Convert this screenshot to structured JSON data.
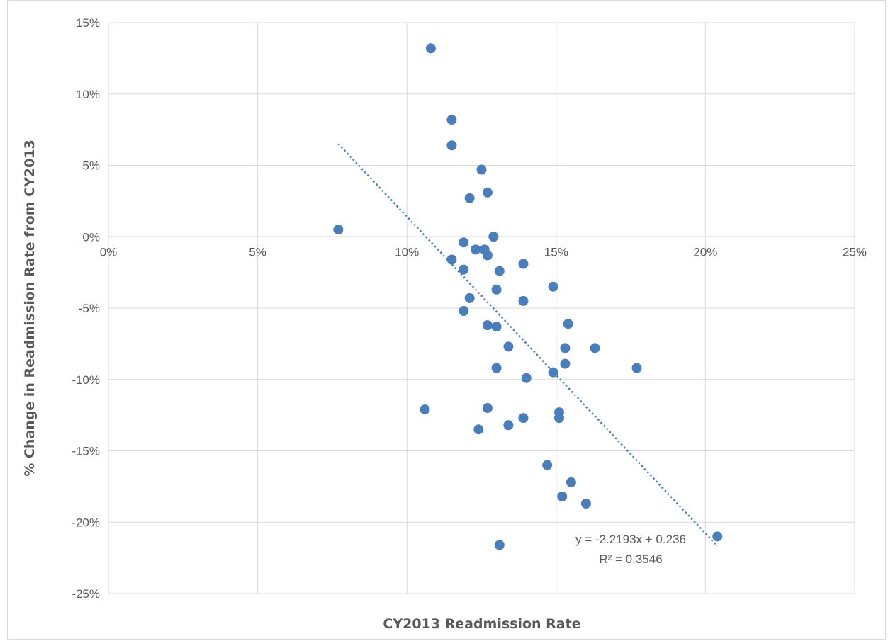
{
  "chart_data": {
    "type": "scatter",
    "title": "",
    "xlabel": "CY2013 Readmission Rate",
    "ylabel": "% Change in Readmission Rate from CY2013",
    "xlim": [
      0,
      0.25
    ],
    "ylim": [
      -0.25,
      0.15
    ],
    "x_ticks": [
      0,
      0.05,
      0.1,
      0.15,
      0.2,
      0.25
    ],
    "x_tick_labels": [
      "0%",
      "5%",
      "10%",
      "15%",
      "20%",
      "25%"
    ],
    "y_ticks": [
      0.15,
      0.1,
      0.05,
      0,
      -0.05,
      -0.1,
      -0.15,
      -0.2,
      -0.25
    ],
    "y_tick_labels": [
      "15%",
      "10%",
      "5%",
      "0%",
      "-5%",
      "-10%",
      "-15%",
      "-20%",
      "-25%"
    ],
    "grid": true,
    "legend": "none",
    "point_color": "#4a7ebb",
    "trendline_color": "#4a7ebb",
    "trendline": {
      "type": "linear",
      "slope": -2.2193,
      "intercept": 0.236,
      "x_range": [
        0.077,
        0.204
      ],
      "equation": "y = -2.2193x + 0.236",
      "r_squared": "R² = 0.3546"
    },
    "series": [
      {
        "points": [
          [
            0.077,
            0.005
          ],
          [
            0.108,
            0.132
          ],
          [
            0.115,
            0.082
          ],
          [
            0.115,
            0.064
          ],
          [
            0.125,
            0.047
          ],
          [
            0.127,
            0.031
          ],
          [
            0.121,
            0.027
          ],
          [
            0.129,
            0.0
          ],
          [
            0.119,
            -0.004
          ],
          [
            0.123,
            -0.009
          ],
          [
            0.126,
            -0.009
          ],
          [
            0.127,
            -0.013
          ],
          [
            0.115,
            -0.016
          ],
          [
            0.119,
            -0.023
          ],
          [
            0.131,
            -0.024
          ],
          [
            0.139,
            -0.019
          ],
          [
            0.149,
            -0.035
          ],
          [
            0.13,
            -0.037
          ],
          [
            0.121,
            -0.043
          ],
          [
            0.139,
            -0.045
          ],
          [
            0.119,
            -0.052
          ],
          [
            0.127,
            -0.062
          ],
          [
            0.13,
            -0.063
          ],
          [
            0.154,
            -0.061
          ],
          [
            0.134,
            -0.077
          ],
          [
            0.153,
            -0.078
          ],
          [
            0.163,
            -0.078
          ],
          [
            0.177,
            -0.092
          ],
          [
            0.13,
            -0.092
          ],
          [
            0.153,
            -0.089
          ],
          [
            0.149,
            -0.095
          ],
          [
            0.14,
            -0.099
          ],
          [
            0.106,
            -0.121
          ],
          [
            0.127,
            -0.12
          ],
          [
            0.151,
            -0.123
          ],
          [
            0.151,
            -0.127
          ],
          [
            0.139,
            -0.127
          ],
          [
            0.134,
            -0.132
          ],
          [
            0.124,
            -0.135
          ],
          [
            0.147,
            -0.16
          ],
          [
            0.155,
            -0.172
          ],
          [
            0.152,
            -0.182
          ],
          [
            0.16,
            -0.187
          ],
          [
            0.204,
            -0.21
          ],
          [
            0.131,
            -0.216
          ]
        ]
      }
    ]
  }
}
